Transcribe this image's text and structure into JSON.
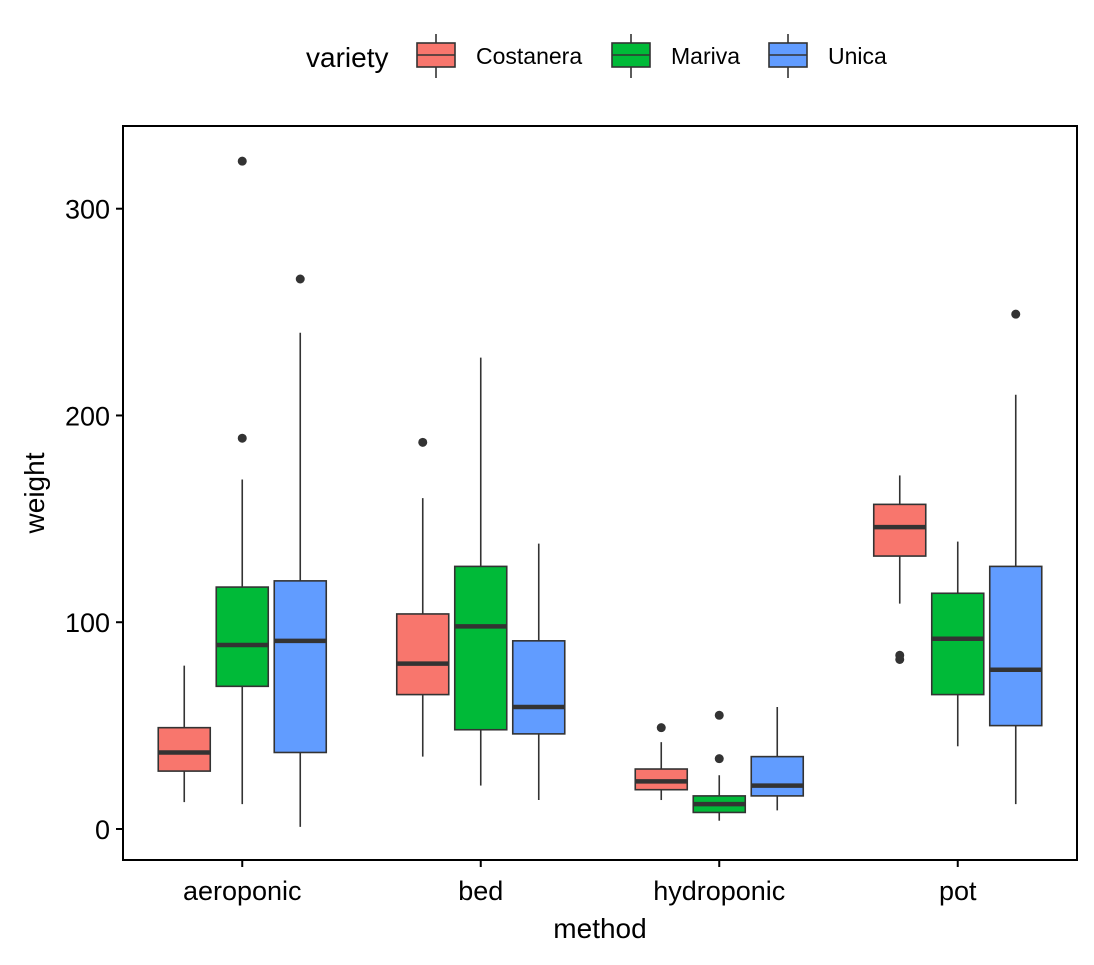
{
  "chart_data": {
    "type": "boxplot",
    "title": "",
    "xlabel": "method",
    "ylabel": "weight",
    "ylim": [
      -15,
      340
    ],
    "yticks": [
      0,
      100,
      200,
      300
    ],
    "categories": [
      "aeroponic",
      "bed",
      "hydroponic",
      "pot"
    ],
    "legend": {
      "title": "variety",
      "placement": "top"
    },
    "series": [
      {
        "name": "Costanera",
        "color": "#F8766D",
        "boxes": [
          {
            "category": "aeroponic",
            "min": 13,
            "q1": 28,
            "median": 37,
            "q3": 49,
            "max": 79,
            "outliers": []
          },
          {
            "category": "bed",
            "min": 35,
            "q1": 65,
            "median": 80,
            "q3": 104,
            "max": 160,
            "outliers": [
              187
            ]
          },
          {
            "category": "hydroponic",
            "min": 14,
            "q1": 19,
            "median": 23,
            "q3": 29,
            "max": 42,
            "outliers": [
              49
            ]
          },
          {
            "category": "pot",
            "min": 109,
            "q1": 132,
            "median": 146,
            "q3": 157,
            "max": 171,
            "outliers": [
              82,
              84
            ]
          }
        ]
      },
      {
        "name": "Mariva",
        "color": "#00BA38",
        "boxes": [
          {
            "category": "aeroponic",
            "min": 12,
            "q1": 69,
            "median": 89,
            "q3": 117,
            "max": 169,
            "outliers": [
              189,
              323
            ]
          },
          {
            "category": "bed",
            "min": 21,
            "q1": 48,
            "median": 98,
            "q3": 127,
            "max": 228,
            "outliers": []
          },
          {
            "category": "hydroponic",
            "min": 4,
            "q1": 8,
            "median": 12,
            "q3": 16,
            "max": 26,
            "outliers": [
              34,
              55
            ]
          },
          {
            "category": "pot",
            "min": 40,
            "q1": 65,
            "median": 92,
            "q3": 114,
            "max": 139,
            "outliers": []
          }
        ]
      },
      {
        "name": "Unica",
        "color": "#619CFF",
        "boxes": [
          {
            "category": "aeroponic",
            "min": 1,
            "q1": 37,
            "median": 91,
            "q3": 120,
            "max": 240,
            "outliers": [
              266
            ]
          },
          {
            "category": "bed",
            "min": 14,
            "q1": 46,
            "median": 59,
            "q3": 91,
            "max": 138,
            "outliers": []
          },
          {
            "category": "hydroponic",
            "min": 9,
            "q1": 16,
            "median": 21,
            "q3": 35,
            "max": 59,
            "outliers": []
          },
          {
            "category": "pot",
            "min": 12,
            "q1": 50,
            "median": 77,
            "q3": 127,
            "max": 210,
            "outliers": [
              249
            ]
          }
        ]
      }
    ]
  }
}
